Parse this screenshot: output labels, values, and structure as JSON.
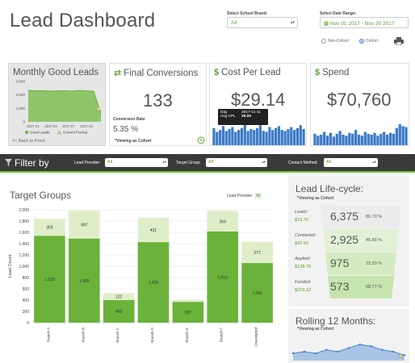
{
  "header": {
    "title": "Lead Dashboard",
    "brand_label": "Select School Brand:",
    "brand_value": "All",
    "date_label": "Select Date Range:",
    "date_value": "Nov 01 2017 - Nov 30 2017",
    "non_cohort": "Non-Cohort",
    "cohort": "Cohort"
  },
  "cards": {
    "monthly": {
      "title": "Monthly Good Leads",
      "back": "<< Back to Front",
      "legend_good": "Good Leads",
      "legend_pacing": "Current Pacing",
      "y_ticks": [
        "3,000",
        "2,000",
        "1,000",
        "0"
      ],
      "x_ticks": [
        "2017-01",
        "2017-04",
        "2017-07",
        "2017-10"
      ],
      "values": [
        2350,
        2300,
        2320,
        2280,
        2300,
        2310,
        2290,
        2330,
        2300,
        2280,
        600
      ]
    },
    "final": {
      "title": "Final Conversions",
      "value": "133",
      "rate_label": "Conversion Rate",
      "rate": "5.35 %",
      "note": "*Viewing as Cohort"
    },
    "cpl": {
      "title": "Cost Per Lead",
      "value": "$29.14",
      "tooltip_day_label": "Day",
      "tooltip_day": "2017-11-11",
      "tooltip_cpl_label": "Avg CPL",
      "tooltip_cpl": "26.05",
      "bars": [
        18,
        14,
        16,
        20,
        15,
        17,
        19,
        14,
        16,
        18,
        22,
        15,
        17,
        16,
        18,
        21,
        15,
        14,
        19,
        16,
        18,
        20,
        16,
        15,
        17,
        19,
        16,
        18,
        21,
        17
      ]
    },
    "spend": {
      "title": "Spend",
      "value": "$70,760",
      "bars": [
        12,
        10,
        11,
        14,
        10,
        13,
        9,
        12,
        15,
        11,
        10,
        13,
        12,
        16,
        11,
        10,
        14,
        12,
        11,
        13,
        10,
        12,
        14,
        11,
        13,
        12,
        18,
        22,
        20,
        19
      ]
    }
  },
  "filters": {
    "title": "Filter by",
    "provider_label": "Lead Provider:",
    "provider_value": "All",
    "group_label": "Target Group:",
    "group_value": "All",
    "method_label": "Contact Method:",
    "method_value": "All"
  },
  "target_groups": {
    "title": "Target Groups",
    "provider_label": "Lead Provider:",
    "provider_value": "All"
  },
  "chart_data": {
    "type": "bar",
    "stacked": true,
    "categories": [
      "Branch A",
      "Branch B",
      "Branch C",
      "Branch D",
      "Branch E",
      "Branch F",
      "Unassigned"
    ],
    "series": [
      {
        "values": [
          1539,
          1489,
          400,
          1426,
          367,
          1614,
          1056
        ],
        "color": "#6ab23a"
      },
      {
        "values": [
          303,
          497,
          122,
          431,
          40,
          364,
          377
        ],
        "color": "#dfeec9"
      }
    ],
    "data_labels_bottom": [
      "1,539",
      "1,489",
      "400",
      "1,426",
      "367",
      "1,614",
      "1,056"
    ],
    "data_labels_top": [
      "303",
      "497",
      "122",
      "431",
      "",
      "364",
      "377"
    ],
    "ylabel": "Lead Count",
    "ylim": [
      0,
      2000
    ],
    "y_ticks": [
      "2,000",
      "1,800",
      "1,600",
      "1,400",
      "1,200",
      "1,000",
      "800",
      "600",
      "400",
      "200",
      "0"
    ],
    "grid": true
  },
  "lifecycle": {
    "title": "Lead Life-cycle:",
    "note": "*Viewing as Cohort",
    "rows": [
      {
        "label": "Leads:",
        "money": "$19.70",
        "value": "6,375",
        "pct": "80.70 %"
      },
      {
        "label": "Contacted:",
        "money": "$42.93",
        "value": "2,925",
        "pct": "45.88 %"
      },
      {
        "label": "Applied:",
        "money": "$128.78",
        "value": "975",
        "pct": "33.33 %"
      },
      {
        "label": "Funded:",
        "money": "$219.12",
        "value": "573",
        "pct": "58.77 %"
      }
    ]
  },
  "rolling": {
    "title": "Rolling 12 Months:",
    "note": "*Viewing as Cohort",
    "values": [
      4,
      5,
      4,
      6,
      5,
      7,
      9,
      8,
      6,
      5,
      3
    ]
  },
  "colors": {
    "accent": "#6cbf3a",
    "bar_blue": "#3e7bc7",
    "dark_bar": "#3a3a3a"
  }
}
